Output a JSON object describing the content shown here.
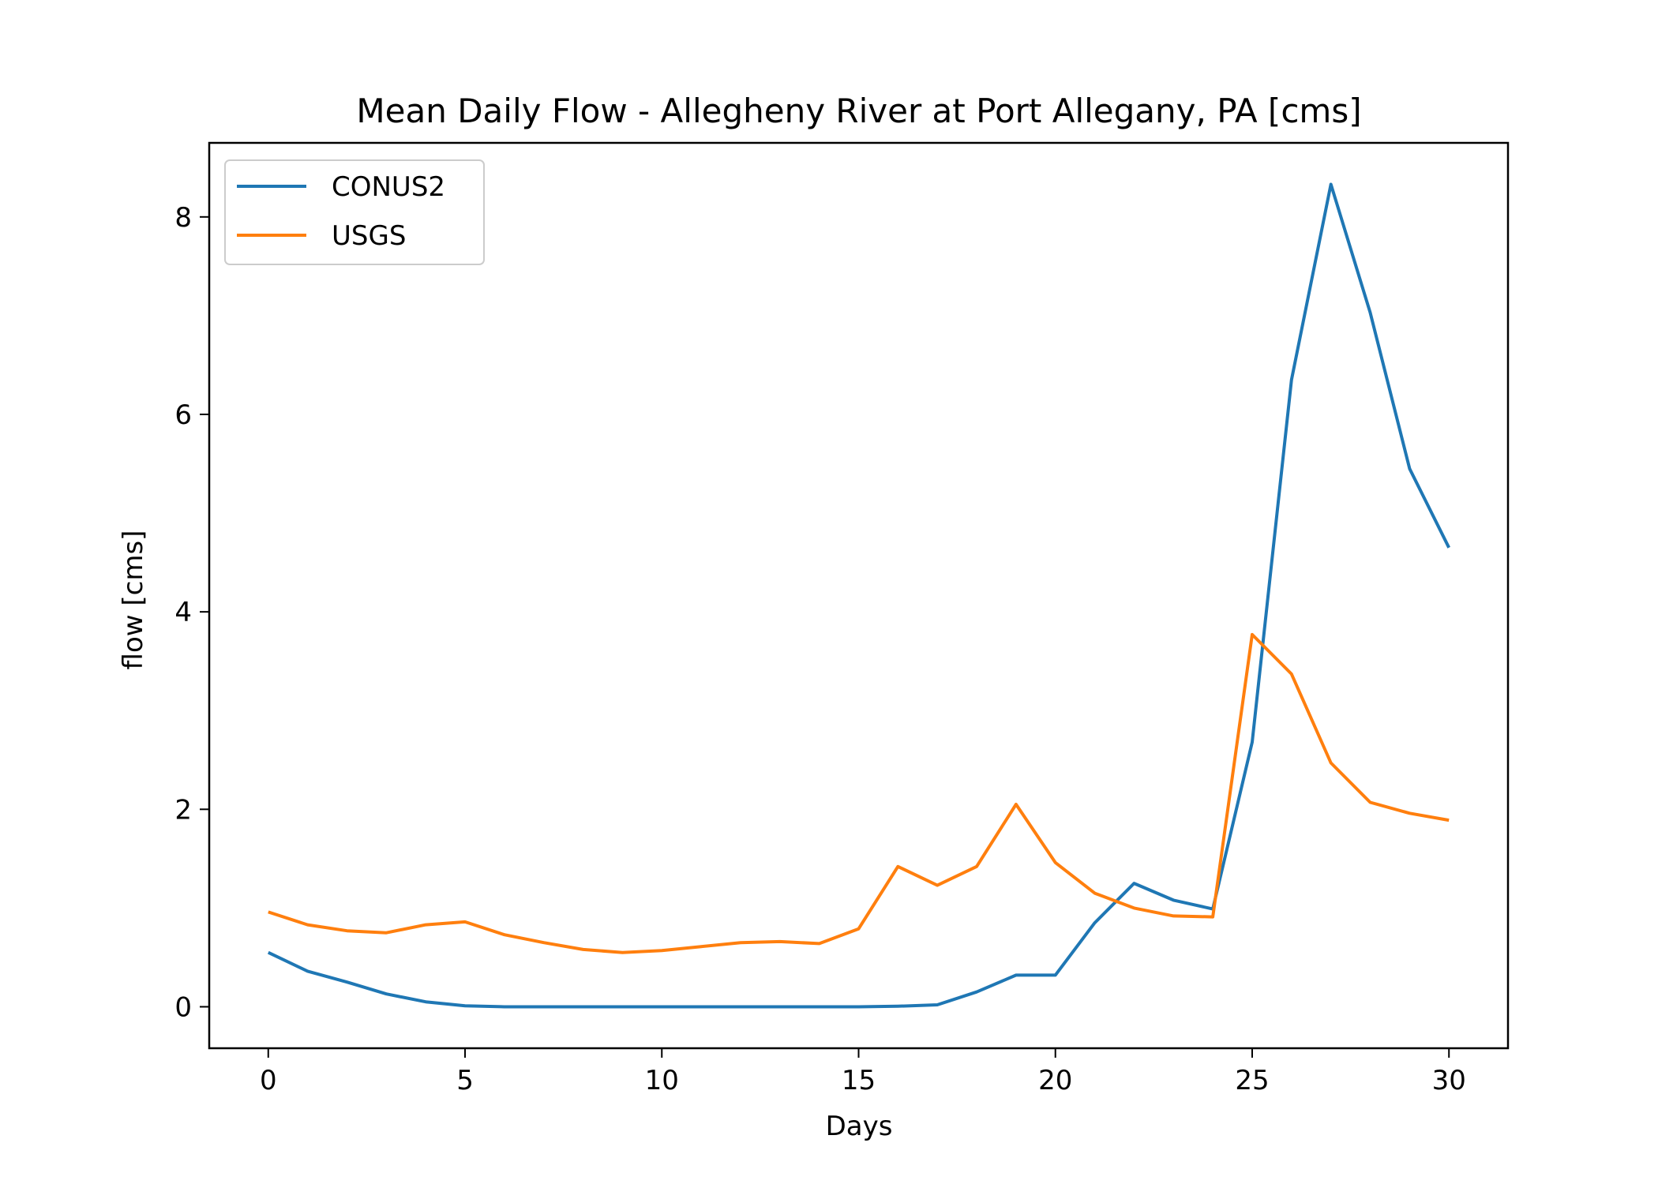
{
  "chart_data": {
    "type": "line",
    "title": "Mean Daily Flow - Allegheny River at Port Allegany, PA [cms]",
    "xlabel": "Days",
    "ylabel": "flow [cms]",
    "xlim": [
      -1.5,
      31.5
    ],
    "ylim": [
      -0.42,
      8.75
    ],
    "xticks": [
      0,
      5,
      10,
      15,
      20,
      25,
      30
    ],
    "yticks": [
      0,
      2,
      4,
      6,
      8
    ],
    "grid": false,
    "legend_position": "upper-left",
    "x": [
      0,
      1,
      2,
      3,
      4,
      5,
      6,
      7,
      8,
      9,
      10,
      11,
      12,
      13,
      14,
      15,
      16,
      17,
      18,
      19,
      20,
      21,
      22,
      23,
      24,
      25,
      26,
      27,
      28,
      29,
      30
    ],
    "series": [
      {
        "name": "CONUS2",
        "color": "#1f77b4",
        "values": [
          0.55,
          0.36,
          0.25,
          0.13,
          0.05,
          0.01,
          0.0,
          0.0,
          0.0,
          0.0,
          0.0,
          0.0,
          0.0,
          0.0,
          0.0,
          0.0,
          0.005,
          0.02,
          0.15,
          0.32,
          0.32,
          0.85,
          1.25,
          1.08,
          0.99,
          2.68,
          6.35,
          8.33,
          7.03,
          5.45,
          4.65
        ]
      },
      {
        "name": "USGS",
        "color": "#ff7f0e",
        "values": [
          0.96,
          0.83,
          0.77,
          0.75,
          0.83,
          0.86,
          0.73,
          0.65,
          0.58,
          0.55,
          0.57,
          0.61,
          0.65,
          0.66,
          0.64,
          0.79,
          1.42,
          1.23,
          1.42,
          2.05,
          1.46,
          1.15,
          1.0,
          0.92,
          0.91,
          3.77,
          3.37,
          2.47,
          2.07,
          1.96,
          1.89
        ]
      }
    ]
  }
}
